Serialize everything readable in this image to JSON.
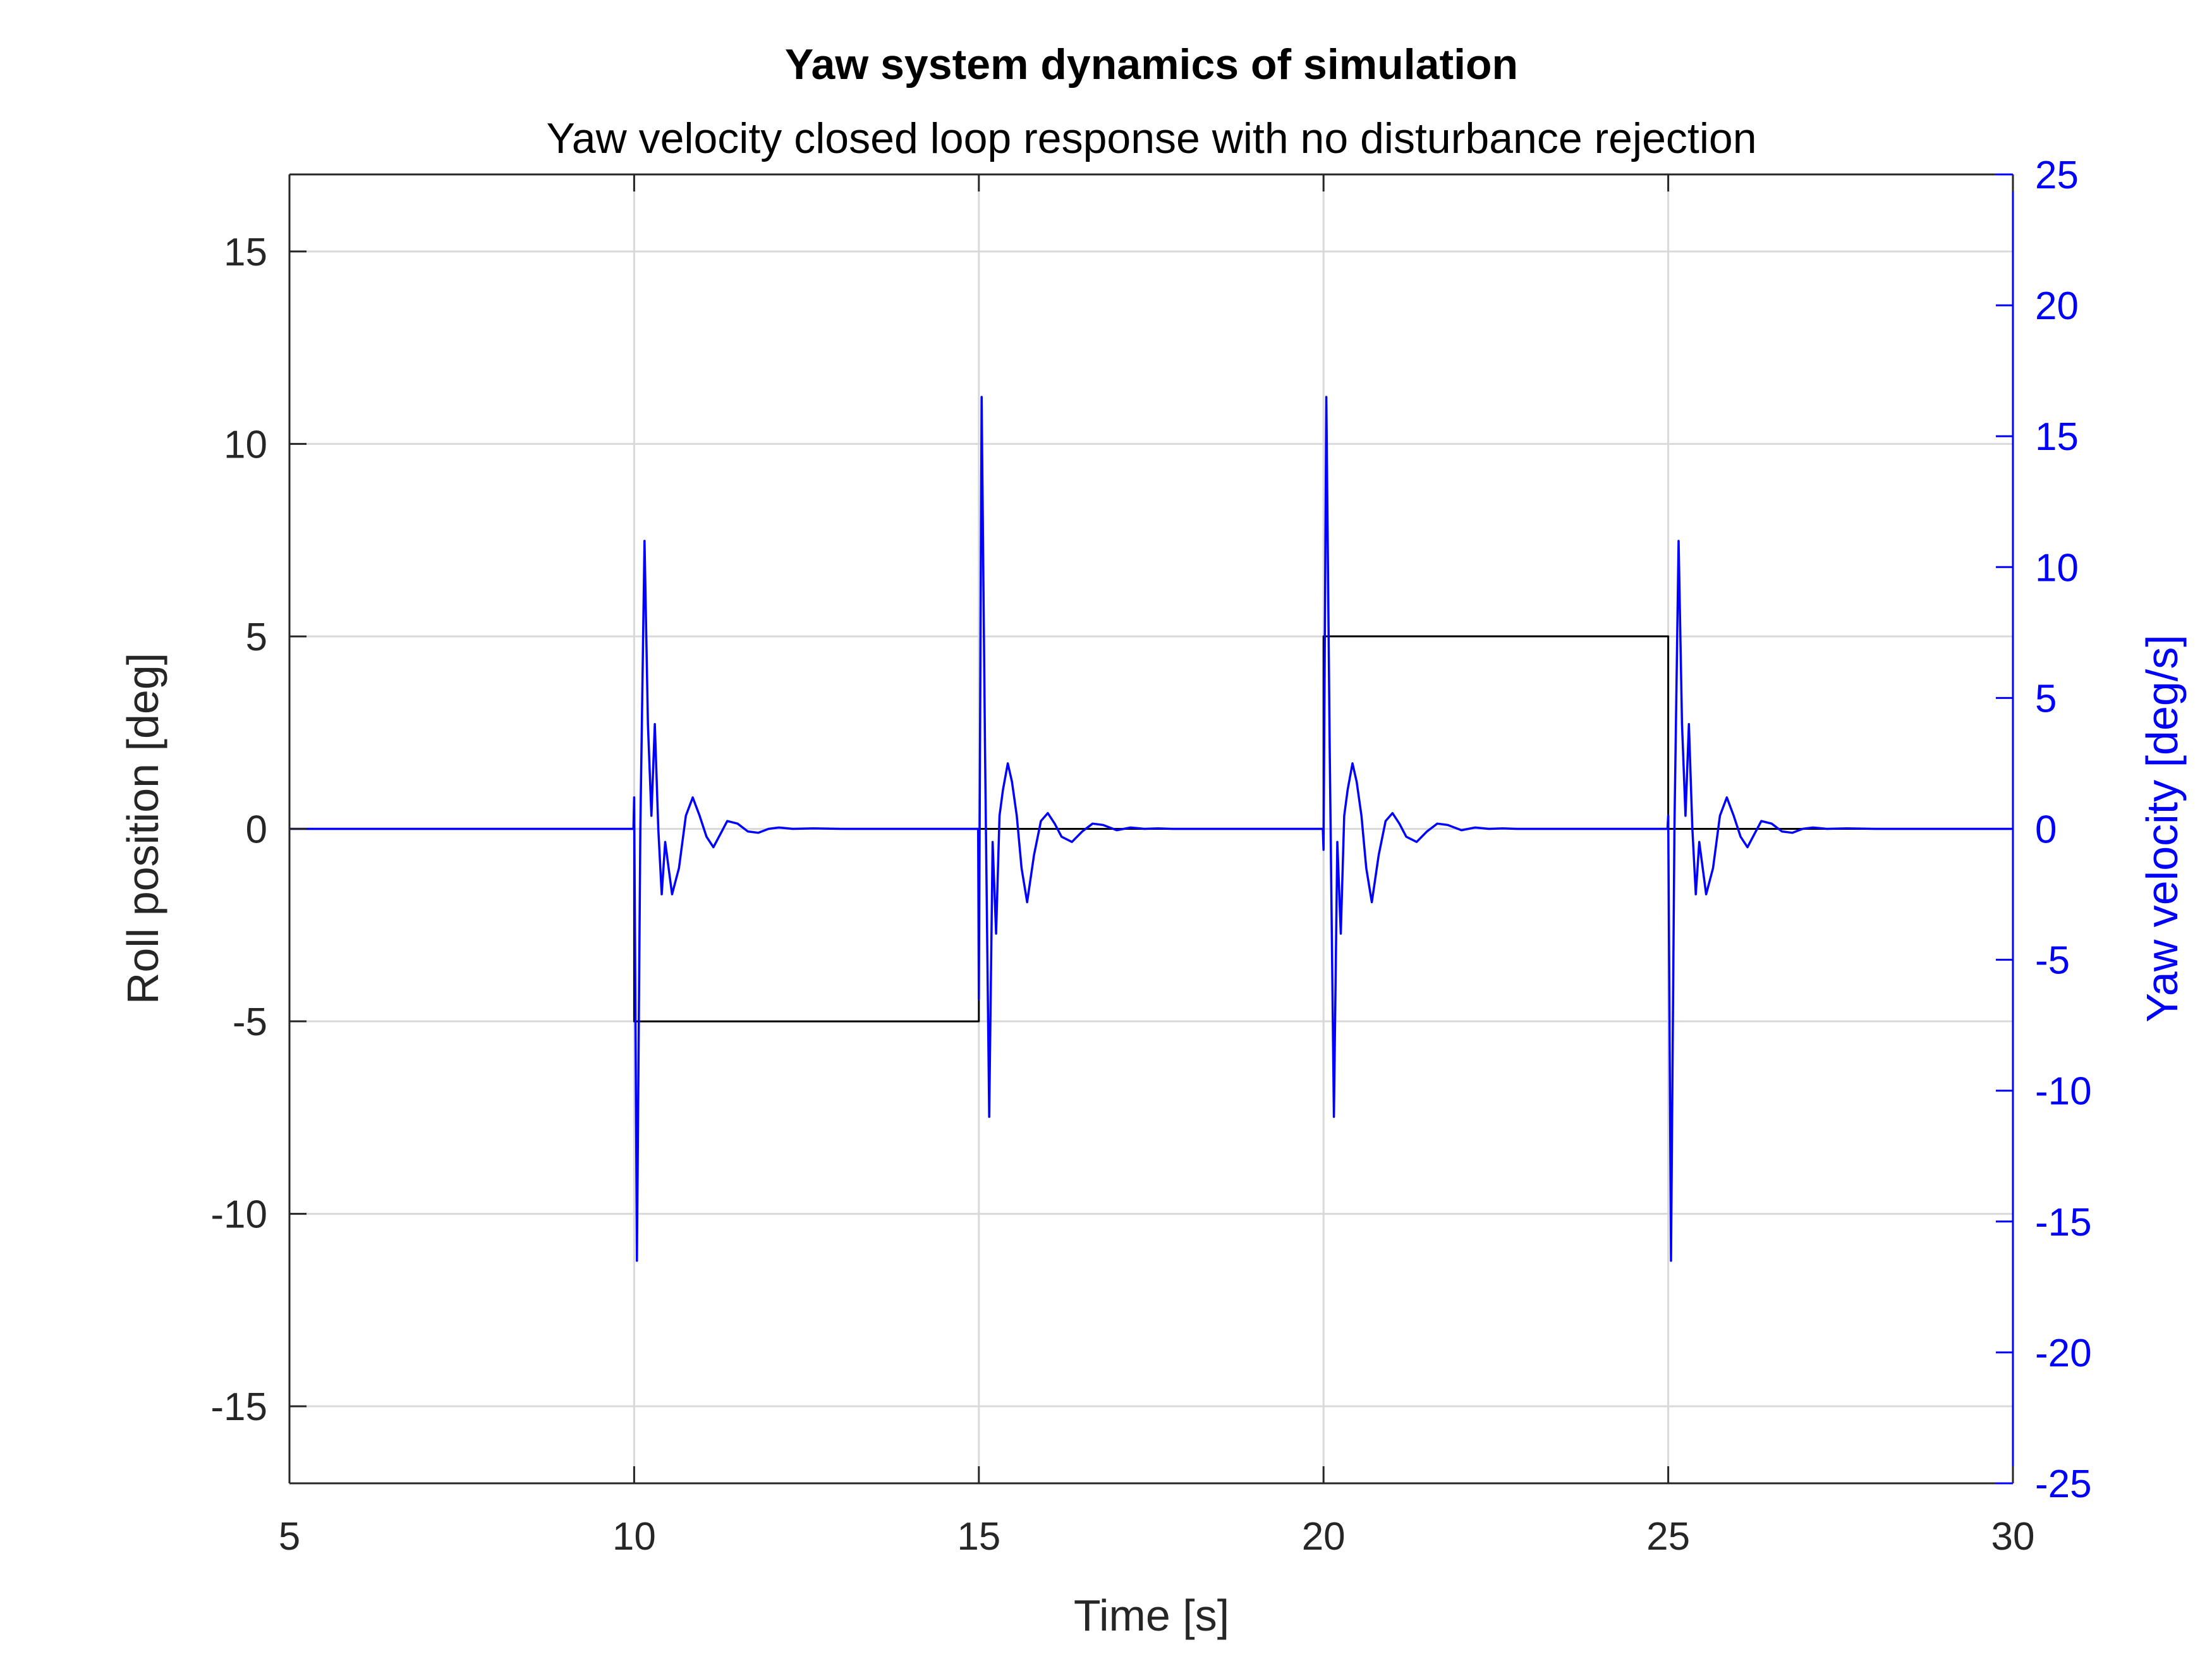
{
  "chart_data": {
    "type": "line",
    "title": "Yaw system dynamics of simulation",
    "subtitle": "Yaw velocity closed loop response with no disturbance rejection",
    "xlabel": "Time [s]",
    "ylabel_left": "Roll position [deg]",
    "ylabel_right": "Yaw velocity [deg/s]",
    "xlim": [
      5,
      30
    ],
    "ylim_left": [
      -17,
      17
    ],
    "ylim_right": [
      -25,
      25
    ],
    "x_ticks": [
      5,
      10,
      15,
      20,
      25,
      30
    ],
    "y_ticks_left": [
      -15,
      -10,
      -5,
      0,
      5,
      10,
      15
    ],
    "y_ticks_right": [
      -25,
      -20,
      -15,
      -10,
      -5,
      0,
      5,
      10,
      15,
      20,
      25
    ],
    "grid": true,
    "colors": {
      "left_series": "#000000",
      "right_series": "#0000ff",
      "left_axis": "#262626",
      "right_axis": "#0000ff"
    },
    "series": [
      {
        "axis": "left",
        "step": true,
        "x": [
          5,
          10,
          10,
          15,
          15,
          20,
          20,
          25,
          25,
          30
        ],
        "y": [
          0,
          0,
          -5,
          -5,
          0,
          0,
          5,
          5,
          0,
          0
        ]
      },
      {
        "axis": "right",
        "x": [
          5,
          9.99,
          10.0,
          10.04,
          10.09,
          10.15,
          10.2,
          10.25,
          10.3,
          10.35,
          10.4,
          10.45,
          10.55,
          10.65,
          10.75,
          10.85,
          10.95,
          11.05,
          11.15,
          11.25,
          11.35,
          11.5,
          11.65,
          11.8,
          11.95,
          12.1,
          12.3,
          12.6,
          13,
          14.99,
          15.0,
          15.04,
          15.09,
          15.15,
          15.2,
          15.25,
          15.3,
          15.35,
          15.42,
          15.48,
          15.55,
          15.62,
          15.7,
          15.8,
          15.9,
          16.0,
          16.1,
          16.2,
          16.35,
          16.5,
          16.65,
          16.8,
          17.0,
          17.2,
          17.4,
          17.6,
          17.8,
          18.2,
          19.99,
          20.0,
          20.04,
          20.09,
          20.15,
          20.2,
          20.25,
          20.3,
          20.35,
          20.42,
          20.48,
          20.55,
          20.62,
          20.7,
          20.8,
          20.9,
          21.0,
          21.1,
          21.2,
          21.35,
          21.5,
          21.65,
          21.8,
          22.0,
          22.2,
          22.4,
          22.6,
          22.8,
          23.2,
          24.99,
          25.0,
          25.04,
          25.09,
          25.15,
          25.2,
          25.25,
          25.3,
          25.35,
          25.4,
          25.45,
          25.55,
          25.65,
          25.75,
          25.85,
          25.95,
          26.05,
          26.15,
          26.25,
          26.35,
          26.5,
          26.65,
          26.8,
          26.95,
          27.1,
          27.3,
          27.6,
          28,
          30
        ],
        "y": [
          0,
          0,
          1.2,
          -16.5,
          0,
          11,
          4,
          0.5,
          4,
          0,
          -2.5,
          -0.5,
          -2.5,
          -1.5,
          0.5,
          1.2,
          0.5,
          -0.3,
          -0.7,
          -0.2,
          0.3,
          0.2,
          -0.1,
          -0.15,
          0,
          0.05,
          0,
          0.02,
          0,
          0,
          -6.5,
          16.5,
          3,
          -11,
          -0.5,
          -4,
          0.5,
          1.5,
          2.5,
          1.8,
          0.5,
          -1.5,
          -2.8,
          -1,
          0.3,
          0.6,
          0.2,
          -0.3,
          -0.5,
          -0.1,
          0.2,
          0.15,
          -0.05,
          0.05,
          0,
          0.02,
          0,
          0,
          0,
          -0.8,
          16.5,
          3,
          -11,
          -0.5,
          -4,
          0.5,
          1.5,
          2.5,
          1.8,
          0.5,
          -1.5,
          -2.8,
          -1,
          0.3,
          0.6,
          0.2,
          -0.3,
          -0.5,
          -0.1,
          0.2,
          0.15,
          -0.05,
          0.05,
          0,
          0.02,
          0,
          0,
          0,
          0.5,
          -16.5,
          0,
          11,
          4,
          0.5,
          4,
          0,
          -2.5,
          -0.5,
          -2.5,
          -1.5,
          0.5,
          1.2,
          0.5,
          -0.3,
          -0.7,
          -0.2,
          0.3,
          0.2,
          -0.1,
          -0.15,
          0,
          0.05,
          0,
          0.02,
          0,
          0
        ]
      }
    ]
  }
}
